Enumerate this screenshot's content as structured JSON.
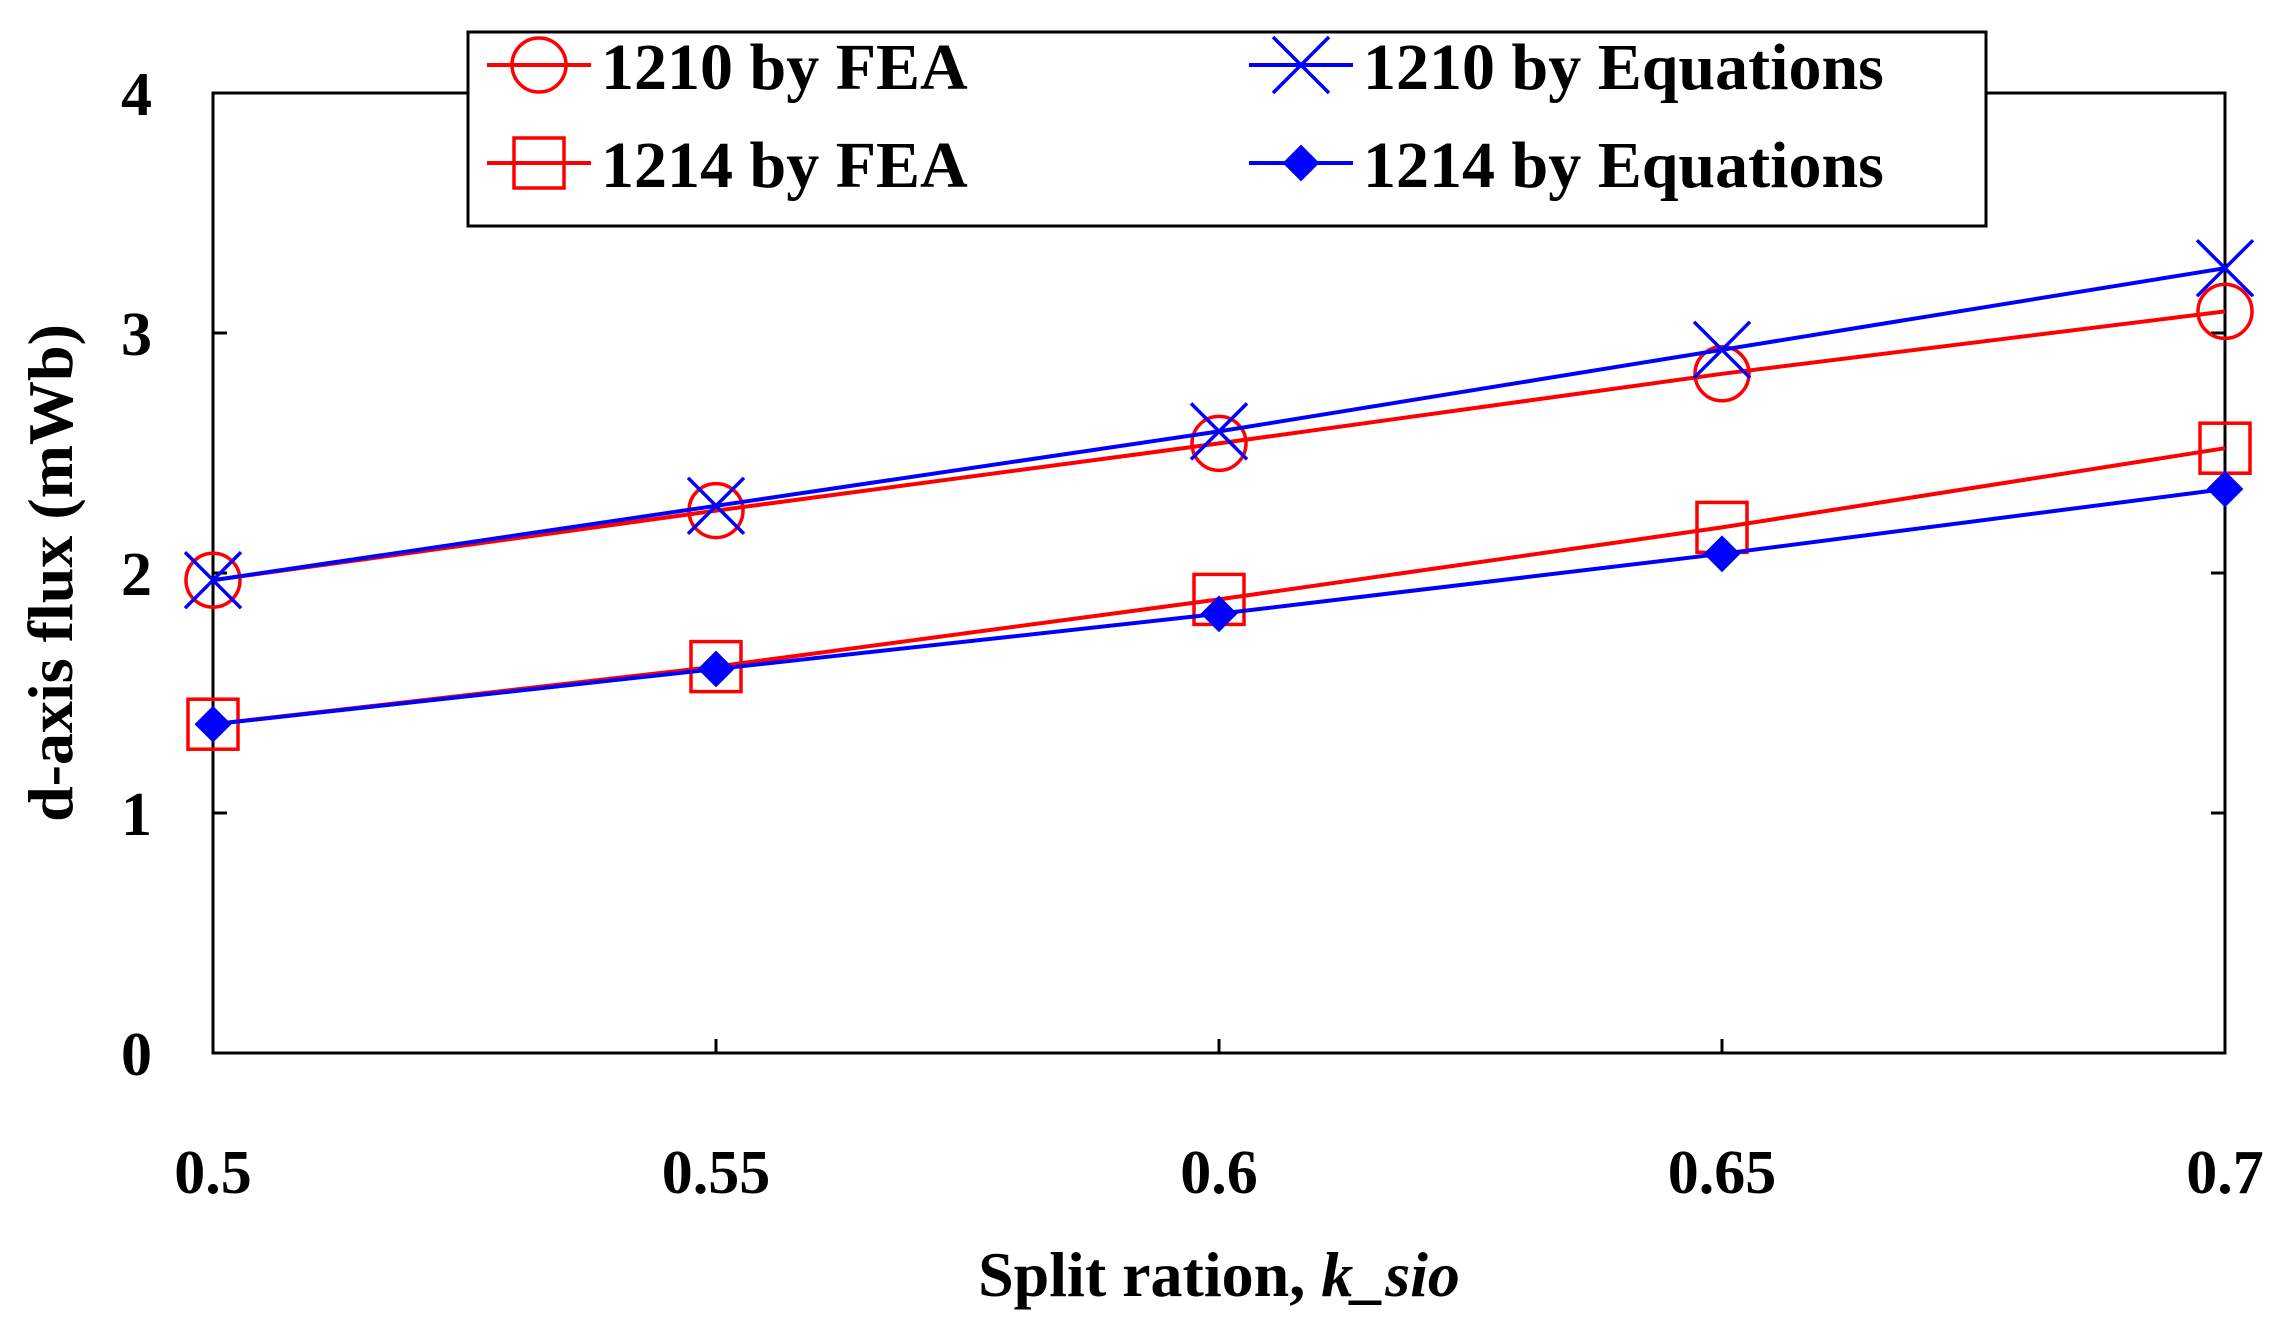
{
  "chart_data": {
    "type": "line",
    "title": "",
    "xlabel": "Split ration, ",
    "xlabel_italic": "k_sio",
    "ylabel": "d-axis flux (mWb)",
    "x": [
      0.5,
      0.55,
      0.6,
      0.65,
      0.7
    ],
    "x_tick_labels": [
      "0.5",
      "0.55",
      "0.6",
      "0.65",
      "0.7"
    ],
    "y_ticks": [
      0,
      1,
      2,
      3,
      4
    ],
    "y_tick_labels": [
      "0",
      "1",
      "2",
      "3",
      "4"
    ],
    "xlim": [
      0.5,
      0.7
    ],
    "ylim": [
      0,
      4
    ],
    "grid": false,
    "legend_position": "top",
    "series": [
      {
        "name": "1210 by FEA",
        "color": "#ff0000",
        "marker": "circle",
        "values": [
          1.97,
          2.26,
          2.54,
          2.83,
          3.09
        ]
      },
      {
        "name": "1210 by Equations",
        "color": "#0000ff",
        "marker": "x",
        "values": [
          1.97,
          2.28,
          2.59,
          2.93,
          3.27
        ]
      },
      {
        "name": "1214 by FEA",
        "color": "#ff0000",
        "marker": "square",
        "values": [
          1.37,
          1.61,
          1.89,
          2.19,
          2.52
        ]
      },
      {
        "name": "1214 by Equations",
        "color": "#0000ff",
        "marker": "diamond",
        "values": [
          1.37,
          1.6,
          1.83,
          2.08,
          2.35
        ]
      }
    ]
  }
}
